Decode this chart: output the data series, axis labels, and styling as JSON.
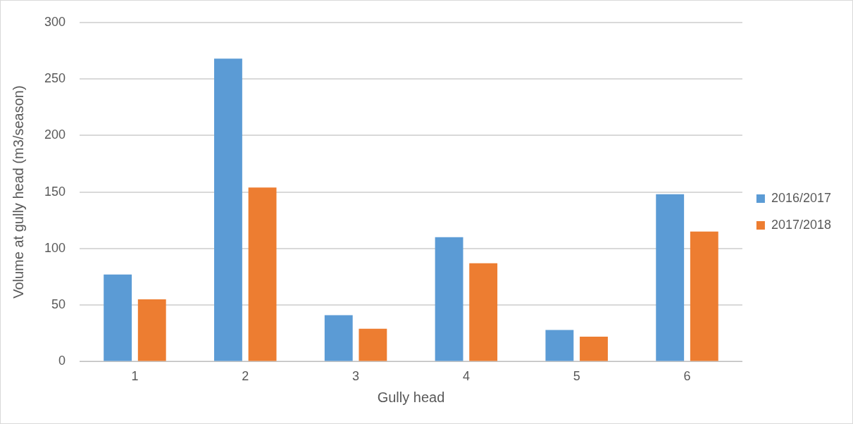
{
  "chart_data": {
    "type": "bar",
    "xlabel": "Gully head",
    "ylabel": "Volume at gully head (m3/season)",
    "categories": [
      "1",
      "2",
      "3",
      "4",
      "5",
      "6"
    ],
    "series": [
      {
        "name": "2016/2017",
        "color": "#5b9bd5",
        "values": [
          77,
          268,
          41,
          110,
          28,
          148
        ]
      },
      {
        "name": "2017/2018",
        "color": "#ed7d31",
        "values": [
          55,
          154,
          29,
          87,
          22,
          115
        ]
      }
    ],
    "ylim": [
      0,
      300
    ],
    "yticks": [
      0,
      50,
      100,
      150,
      200,
      250,
      300
    ],
    "grid": "y",
    "legend": "right"
  }
}
